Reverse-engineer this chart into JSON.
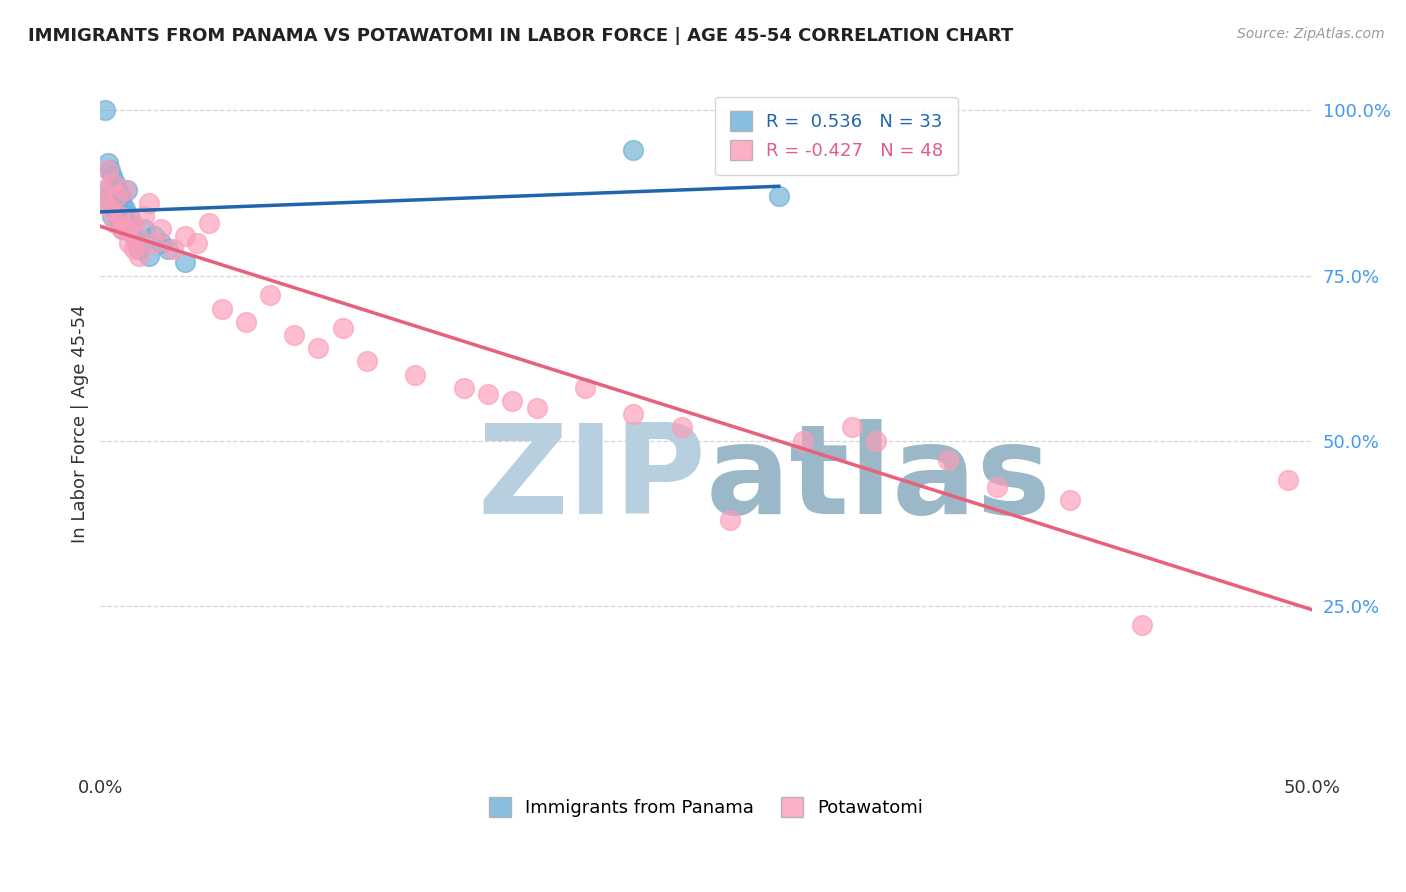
{
  "title": "IMMIGRANTS FROM PANAMA VS POTAWATOMI IN LABOR FORCE | AGE 45-54 CORRELATION CHART",
  "source": "Source: ZipAtlas.com",
  "ylabel": "In Labor Force | Age 45-54",
  "xlim": [
    0.0,
    0.5
  ],
  "ylim": [
    0.0,
    1.05
  ],
  "x_tick_positions": [
    0.0,
    0.1,
    0.2,
    0.3,
    0.4,
    0.5
  ],
  "x_tick_labels": [
    "0.0%",
    "",
    "",
    "",
    "",
    "50.0%"
  ],
  "y_tick_positions": [
    0.25,
    0.5,
    0.75,
    1.0
  ],
  "y_tick_labels": [
    "25.0%",
    "50.0%",
    "75.0%",
    "100.0%"
  ],
  "panama_R": 0.536,
  "panama_N": 33,
  "potawatomi_R": -0.427,
  "potawatomi_N": 48,
  "panama_color": "#6baed6",
  "potawatomi_color": "#fc9db8",
  "panama_line_color": "#2166ac",
  "potawatomi_line_color": "#e8607a",
  "panama_x": [
    0.001,
    0.002,
    0.003,
    0.003,
    0.004,
    0.004,
    0.005,
    0.005,
    0.006,
    0.006,
    0.007,
    0.007,
    0.008,
    0.008,
    0.009,
    0.009,
    0.01,
    0.01,
    0.011,
    0.011,
    0.012,
    0.013,
    0.014,
    0.015,
    0.016,
    0.018,
    0.02,
    0.022,
    0.025,
    0.028,
    0.035,
    0.22,
    0.28
  ],
  "panama_y": [
    0.86,
    1.0,
    0.92,
    0.88,
    0.91,
    0.87,
    0.9,
    0.84,
    0.89,
    0.85,
    0.88,
    0.84,
    0.87,
    0.83,
    0.86,
    0.82,
    0.85,
    0.83,
    0.88,
    0.82,
    0.84,
    0.83,
    0.81,
    0.8,
    0.79,
    0.82,
    0.78,
    0.81,
    0.8,
    0.79,
    0.77,
    0.94,
    0.87
  ],
  "potawatomi_x": [
    0.001,
    0.002,
    0.003,
    0.004,
    0.005,
    0.006,
    0.007,
    0.008,
    0.009,
    0.01,
    0.011,
    0.012,
    0.013,
    0.014,
    0.015,
    0.016,
    0.018,
    0.02,
    0.022,
    0.025,
    0.03,
    0.035,
    0.04,
    0.045,
    0.05,
    0.06,
    0.07,
    0.08,
    0.09,
    0.1,
    0.11,
    0.13,
    0.15,
    0.16,
    0.17,
    0.18,
    0.2,
    0.22,
    0.24,
    0.26,
    0.29,
    0.31,
    0.32,
    0.35,
    0.37,
    0.4,
    0.43,
    0.49
  ],
  "potawatomi_y": [
    0.88,
    0.86,
    0.91,
    0.85,
    0.89,
    0.83,
    0.87,
    0.84,
    0.82,
    0.88,
    0.82,
    0.8,
    0.83,
    0.79,
    0.81,
    0.78,
    0.84,
    0.86,
    0.8,
    0.82,
    0.79,
    0.81,
    0.8,
    0.83,
    0.7,
    0.68,
    0.72,
    0.66,
    0.64,
    0.67,
    0.62,
    0.6,
    0.58,
    0.57,
    0.56,
    0.55,
    0.58,
    0.54,
    0.52,
    0.38,
    0.5,
    0.52,
    0.5,
    0.47,
    0.43,
    0.41,
    0.22,
    0.44
  ],
  "watermark_zip": "ZIP",
  "watermark_atlas": "atlas",
  "watermark_color": "#b8cfe0",
  "watermark_color2": "#9ab8c8"
}
